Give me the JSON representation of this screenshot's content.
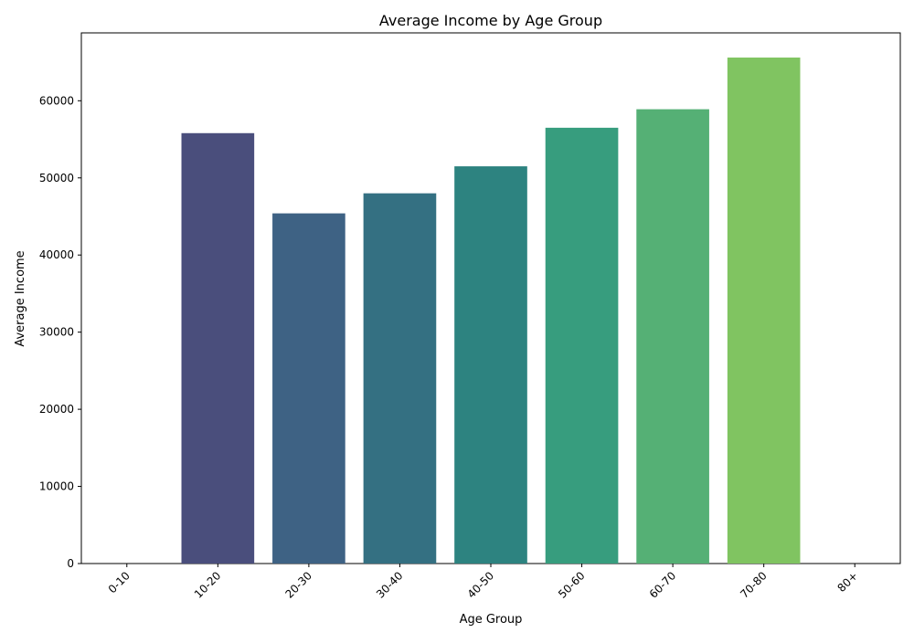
{
  "chart_data": {
    "type": "bar",
    "title": "Average Income by Age Group",
    "xlabel": "Age Group",
    "ylabel": "Average Income",
    "categories": [
      "0-10",
      "10-20",
      "20-30",
      "30-40",
      "40-50",
      "50-60",
      "60-70",
      "70-80",
      "80+"
    ],
    "values": [
      0,
      55800,
      45400,
      48000,
      51500,
      56500,
      58900,
      65600,
      0
    ],
    "colors": [
      "#482374",
      "#4a4e7c",
      "#3e6284",
      "#347082",
      "#2d8380",
      "#379d7e",
      "#55b075",
      "#80c461",
      "#b5dd2b"
    ],
    "ylim": [
      0,
      68800
    ],
    "yticks": [
      0,
      10000,
      20000,
      30000,
      40000,
      50000,
      60000
    ],
    "ytick_labels": [
      "0",
      "10000",
      "20000",
      "30000",
      "40000",
      "50000",
      "60000"
    ],
    "grid": false,
    "legend": "none"
  }
}
